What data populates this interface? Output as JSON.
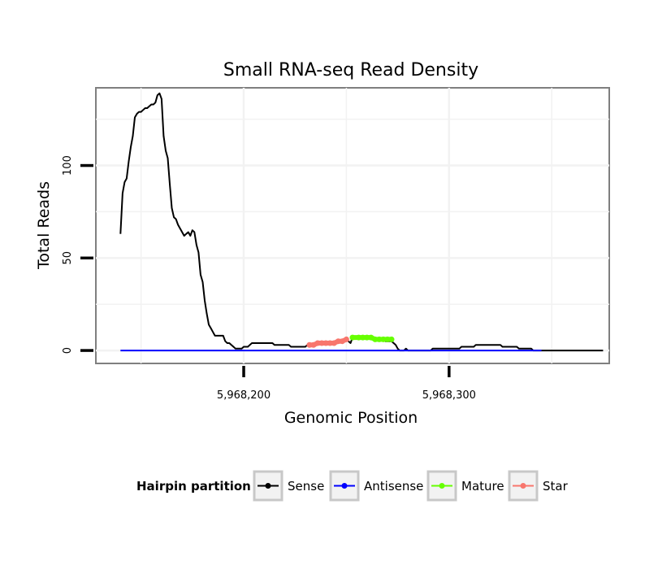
{
  "chart_data": {
    "type": "line",
    "title": "Small RNA-seq Read Density",
    "xlabel": "Genomic Position",
    "ylabel": "Total Reads",
    "xlim": [
      5968128,
      5968378
    ],
    "ylim": [
      -7,
      142
    ],
    "x_ticks": [
      {
        "value": 5968200,
        "label": "5,968,200"
      },
      {
        "value": 5968300,
        "label": "5,968,300"
      }
    ],
    "y_ticks": [
      {
        "value": 0,
        "label": "0"
      },
      {
        "value": 50,
        "label": "50"
      },
      {
        "value": 100,
        "label": "100"
      }
    ],
    "grid": true,
    "legend": {
      "title": "Hairpin partition",
      "position": "bottom",
      "entries": [
        {
          "name": "Sense",
          "color": "#000000"
        },
        {
          "name": "Antisense",
          "color": "#0000ff"
        },
        {
          "name": "Mature",
          "color": "#66ff00"
        },
        {
          "name": "Star",
          "color": "#f8766d"
        }
      ]
    },
    "series": [
      {
        "name": "Sense",
        "color": "#000000",
        "points": [
          [
            5968140,
            63
          ],
          [
            5968141,
            85
          ],
          [
            5968142,
            91
          ],
          [
            5968143,
            93
          ],
          [
            5968144,
            102
          ],
          [
            5968145,
            110
          ],
          [
            5968146,
            116
          ],
          [
            5968147,
            126
          ],
          [
            5968148,
            128
          ],
          [
            5968149,
            129
          ],
          [
            5968150,
            129
          ],
          [
            5968151,
            130
          ],
          [
            5968152,
            131
          ],
          [
            5968153,
            131
          ],
          [
            5968154,
            132
          ],
          [
            5968155,
            133
          ],
          [
            5968156,
            133
          ],
          [
            5968157,
            134
          ],
          [
            5968158,
            138
          ],
          [
            5968159,
            139
          ],
          [
            5968160,
            136
          ],
          [
            5968161,
            116
          ],
          [
            5968162,
            108
          ],
          [
            5968163,
            104
          ],
          [
            5968164,
            90
          ],
          [
            5968165,
            77
          ],
          [
            5968166,
            72
          ],
          [
            5968167,
            71
          ],
          [
            5968168,
            68
          ],
          [
            5968169,
            66
          ],
          [
            5968170,
            64
          ],
          [
            5968171,
            62
          ],
          [
            5968172,
            63
          ],
          [
            5968173,
            64
          ],
          [
            5968174,
            62
          ],
          [
            5968175,
            65
          ],
          [
            5968176,
            64
          ],
          [
            5968177,
            57
          ],
          [
            5968178,
            53
          ],
          [
            5968179,
            41
          ],
          [
            5968180,
            37
          ],
          [
            5968181,
            27
          ],
          [
            5968182,
            20
          ],
          [
            5968183,
            14
          ],
          [
            5968184,
            12
          ],
          [
            5968185,
            10
          ],
          [
            5968186,
            8
          ],
          [
            5968190,
            8
          ],
          [
            5968191,
            5
          ],
          [
            5968192,
            4
          ],
          [
            5968193,
            4
          ],
          [
            5968194,
            3
          ],
          [
            5968195,
            2
          ],
          [
            5968196,
            1
          ],
          [
            5968197,
            1
          ],
          [
            5968198,
            1
          ],
          [
            5968199,
            1
          ],
          [
            5968200,
            2
          ],
          [
            5968202,
            2
          ],
          [
            5968203,
            3
          ],
          [
            5968204,
            4
          ],
          [
            5968214,
            4
          ],
          [
            5968215,
            3
          ],
          [
            5968222,
            3
          ],
          [
            5968223,
            2
          ],
          [
            5968230,
            2
          ],
          [
            5968231,
            3
          ],
          [
            5968235,
            3
          ],
          [
            5968236,
            4
          ],
          [
            5968245,
            4
          ],
          [
            5968246,
            5
          ],
          [
            5968248,
            5
          ],
          [
            5968249,
            6
          ],
          [
            5968250,
            6
          ],
          [
            5968251,
            5
          ],
          [
            5968252,
            4
          ],
          [
            5968253,
            7
          ],
          [
            5968263,
            7
          ],
          [
            5968264,
            6
          ],
          [
            5968268,
            6
          ],
          [
            5968269,
            5
          ],
          [
            5968272,
            5
          ],
          [
            5968273,
            4
          ],
          [
            5968274,
            3
          ],
          [
            5968275,
            1
          ],
          [
            5968276,
            0
          ],
          [
            5968278,
            0
          ],
          [
            5968279,
            1
          ],
          [
            5968280,
            0
          ],
          [
            5968291,
            0
          ],
          [
            5968292,
            1
          ],
          [
            5968305,
            1
          ],
          [
            5968306,
            2
          ],
          [
            5968312,
            2
          ],
          [
            5968313,
            3
          ],
          [
            5968325,
            3
          ],
          [
            5968326,
            2
          ],
          [
            5968333,
            2
          ],
          [
            5968334,
            1
          ],
          [
            5968340,
            1
          ],
          [
            5968341,
            0
          ],
          [
            5968375,
            0
          ]
        ]
      },
      {
        "name": "Antisense",
        "color": "#0000ff",
        "points": [
          [
            5968140,
            0
          ],
          [
            5968345,
            0
          ]
        ]
      },
      {
        "name": "Mature",
        "color": "#66ff00",
        "points": [
          [
            5968253,
            7
          ],
          [
            5968256,
            7
          ],
          [
            5968258,
            7
          ],
          [
            5968260,
            7
          ],
          [
            5968262,
            7
          ],
          [
            5968264,
            6
          ],
          [
            5968266,
            6
          ],
          [
            5968268,
            6
          ],
          [
            5968270,
            6
          ],
          [
            5968272,
            6
          ]
        ]
      },
      {
        "name": "Star",
        "color": "#f8766d",
        "points": [
          [
            5968232,
            3
          ],
          [
            5968234,
            3
          ],
          [
            5968236,
            4
          ],
          [
            5968238,
            4
          ],
          [
            5968240,
            4
          ],
          [
            5968242,
            4
          ],
          [
            5968244,
            4
          ],
          [
            5968246,
            5
          ],
          [
            5968248,
            5
          ],
          [
            5968250,
            6
          ]
        ]
      }
    ]
  }
}
